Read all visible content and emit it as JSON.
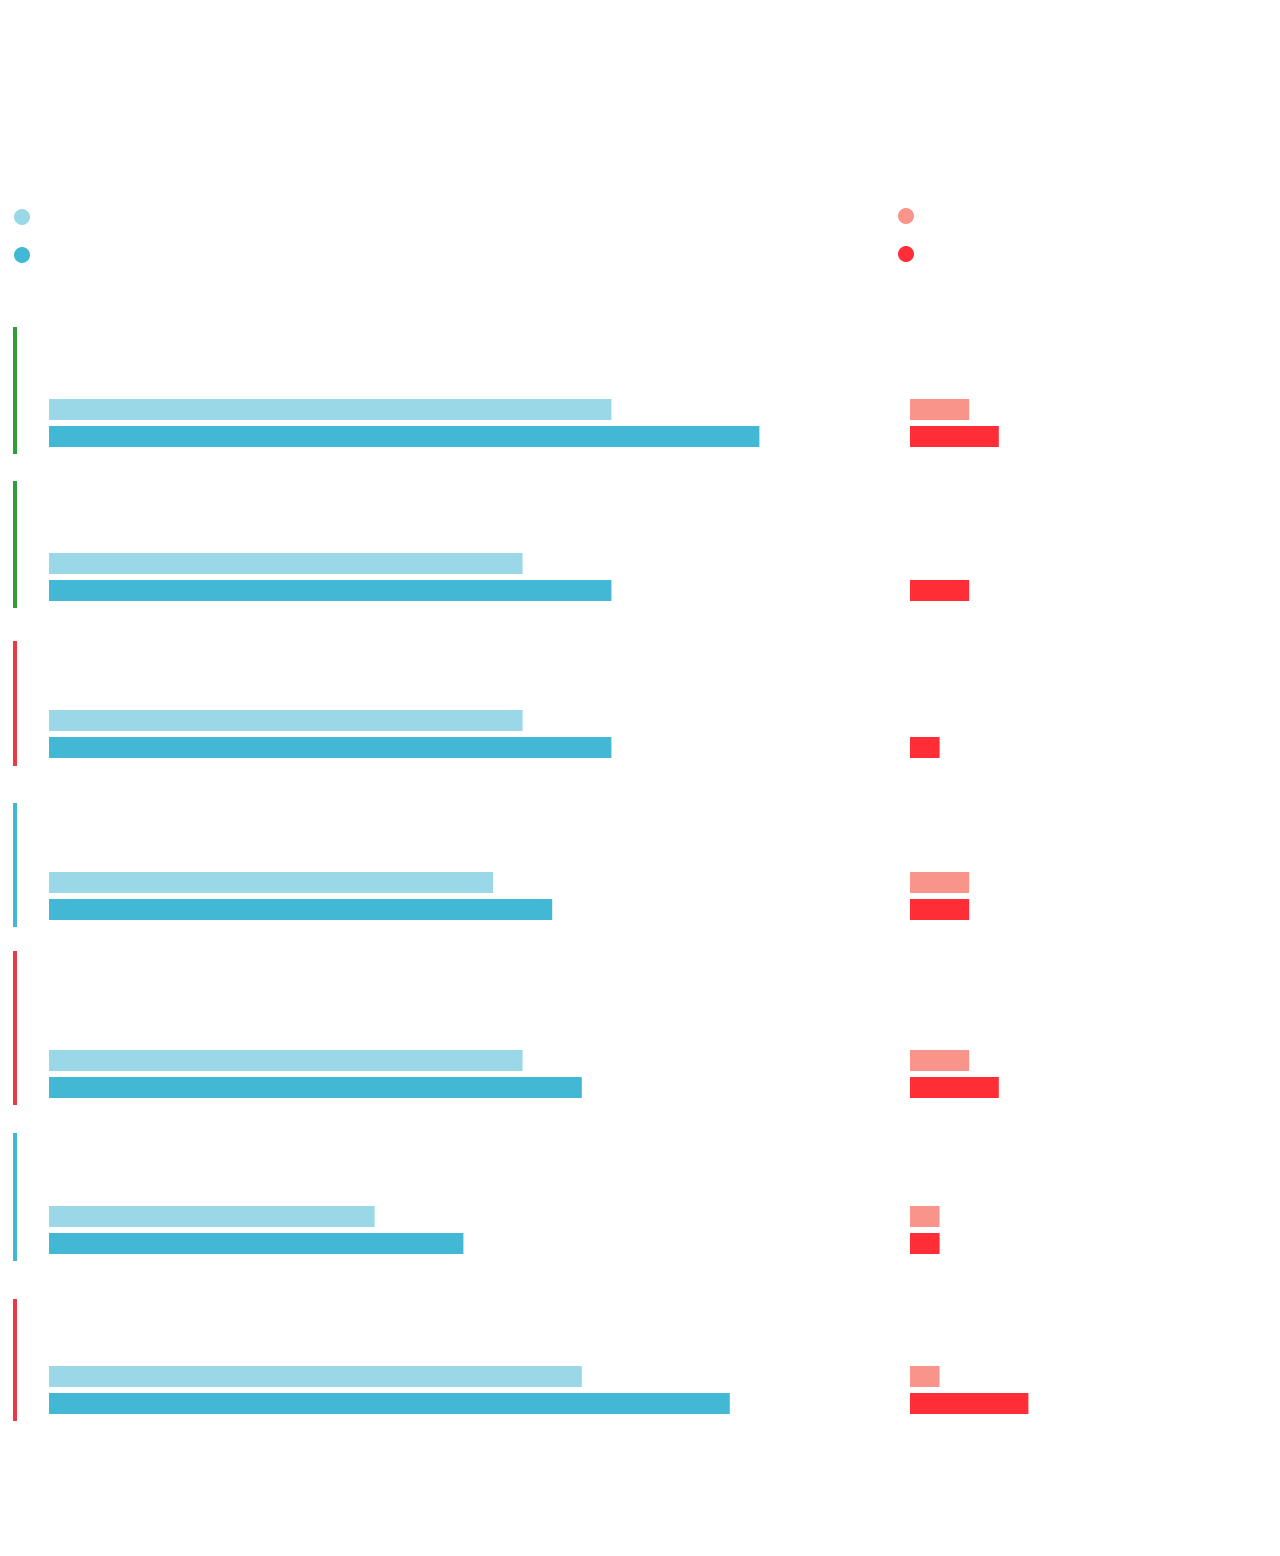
{
  "chart_data": {
    "type": "bar",
    "orientation": "horizontal",
    "categories": [
      null,
      null,
      null,
      null,
      null,
      null,
      null
    ],
    "row_colors": [
      "#2e9e3a",
      "#2e9e3a",
      "#e83a47",
      "#43b8d4",
      "#e83a47",
      "#43b8d4",
      "#e83a47"
    ],
    "series": [
      {
        "color": "#9ad8e8",
        "values": [
          19,
          16,
          16,
          15,
          16,
          11,
          18
        ]
      },
      {
        "color": "#43b8d4",
        "values": [
          24,
          19,
          19,
          17,
          18,
          14,
          23
        ]
      },
      {
        "color": "#f9948a",
        "values": [
          2,
          0,
          0,
          2,
          2,
          1,
          1
        ]
      },
      {
        "color": "#ff2d36",
        "values": [
          3,
          2,
          1,
          2,
          3,
          1,
          4
        ]
      }
    ]
  }
}
